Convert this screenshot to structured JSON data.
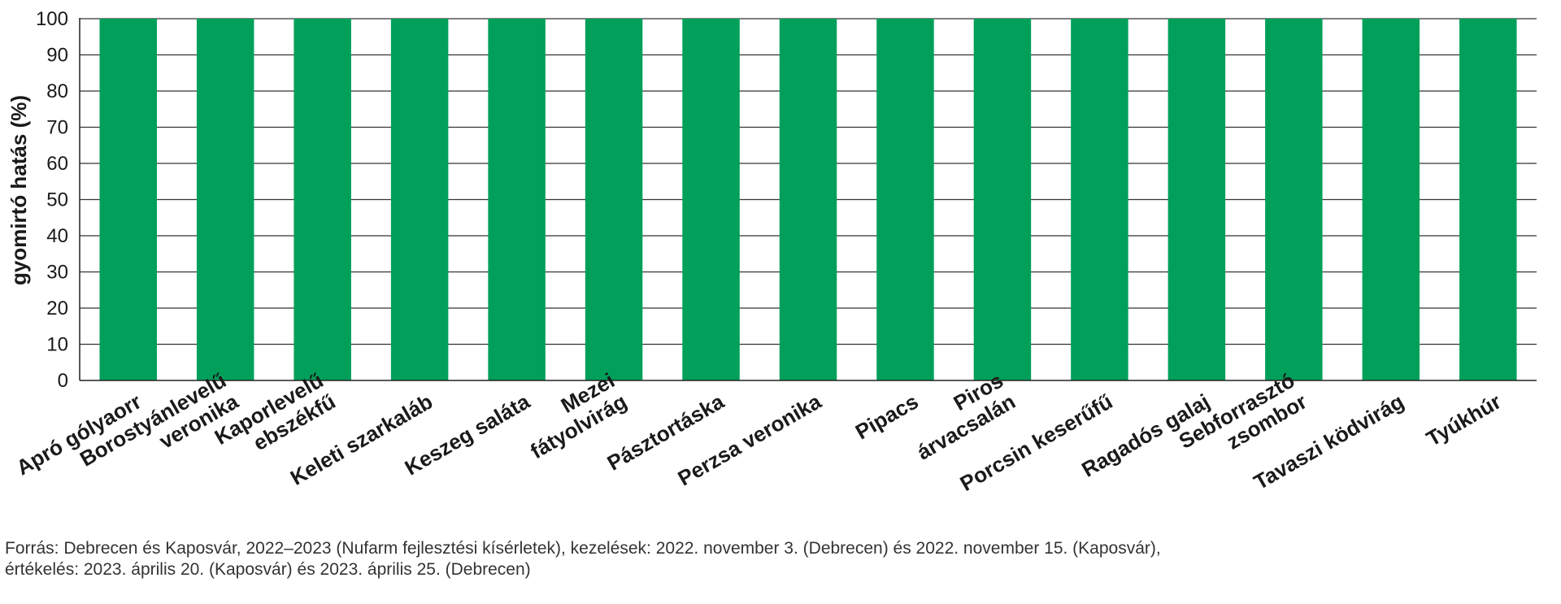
{
  "chart_data": {
    "type": "bar",
    "title": "",
    "xlabel": "",
    "ylabel": "gyomirtó hatás (%)",
    "ylim": [
      0,
      100
    ],
    "yticks": [
      0,
      10,
      20,
      30,
      40,
      50,
      60,
      70,
      80,
      90,
      100
    ],
    "grid": true,
    "bar_color": "#00a05a",
    "categories": [
      "Apró gólyaorr",
      "Borostyánlevelű veronika",
      "Kaporlevelű ebszékfű",
      "Keleti szarkaláb",
      "Keszeg saláta",
      "Mezei fátyolvirág",
      "Pásztortáska",
      "Perzsa veronika",
      "Pipacs",
      "Piros árvacsalán",
      "Porcsin keserűfű",
      "Ragadós galaj",
      "Sebforrasztó zsombor",
      "Tavaszi ködvirág",
      "Tyúkhúr"
    ],
    "label_lines": [
      [
        "Apró gólyaorr"
      ],
      [
        "Borostyánlevelű",
        "veronika"
      ],
      [
        "Kaporlevelű",
        "ebszékfű"
      ],
      [
        "Keleti szarkaláb"
      ],
      [
        "Keszeg saláta"
      ],
      [
        "Mezei",
        "fátyolvirág"
      ],
      [
        "Pásztortáska"
      ],
      [
        "Perzsa veronika"
      ],
      [
        "Pipacs"
      ],
      [
        "Piros",
        "árvacsalán"
      ],
      [
        "Porcsin keserűfű"
      ],
      [
        "Ragadós galaj"
      ],
      [
        "Sebforrasztó",
        "zsombor"
      ],
      [
        "Tavaszi ködvirág"
      ],
      [
        "Tyúkhúr"
      ]
    ],
    "values": [
      100,
      100,
      100,
      100,
      100,
      100,
      100,
      100,
      100,
      100,
      100,
      100,
      100,
      100,
      100
    ]
  },
  "source": {
    "line1": "Forrás: Debrecen és Kaposvár, 2022–2023 (Nufarm fejlesztési kísérletek), kezelések: 2022. november 3. (Debrecen) és 2022. november 15. (Kaposvár),",
    "line2": "értékelés: 2023. április 20. (Kaposvár) és 2023. április 25. (Debrecen)"
  }
}
